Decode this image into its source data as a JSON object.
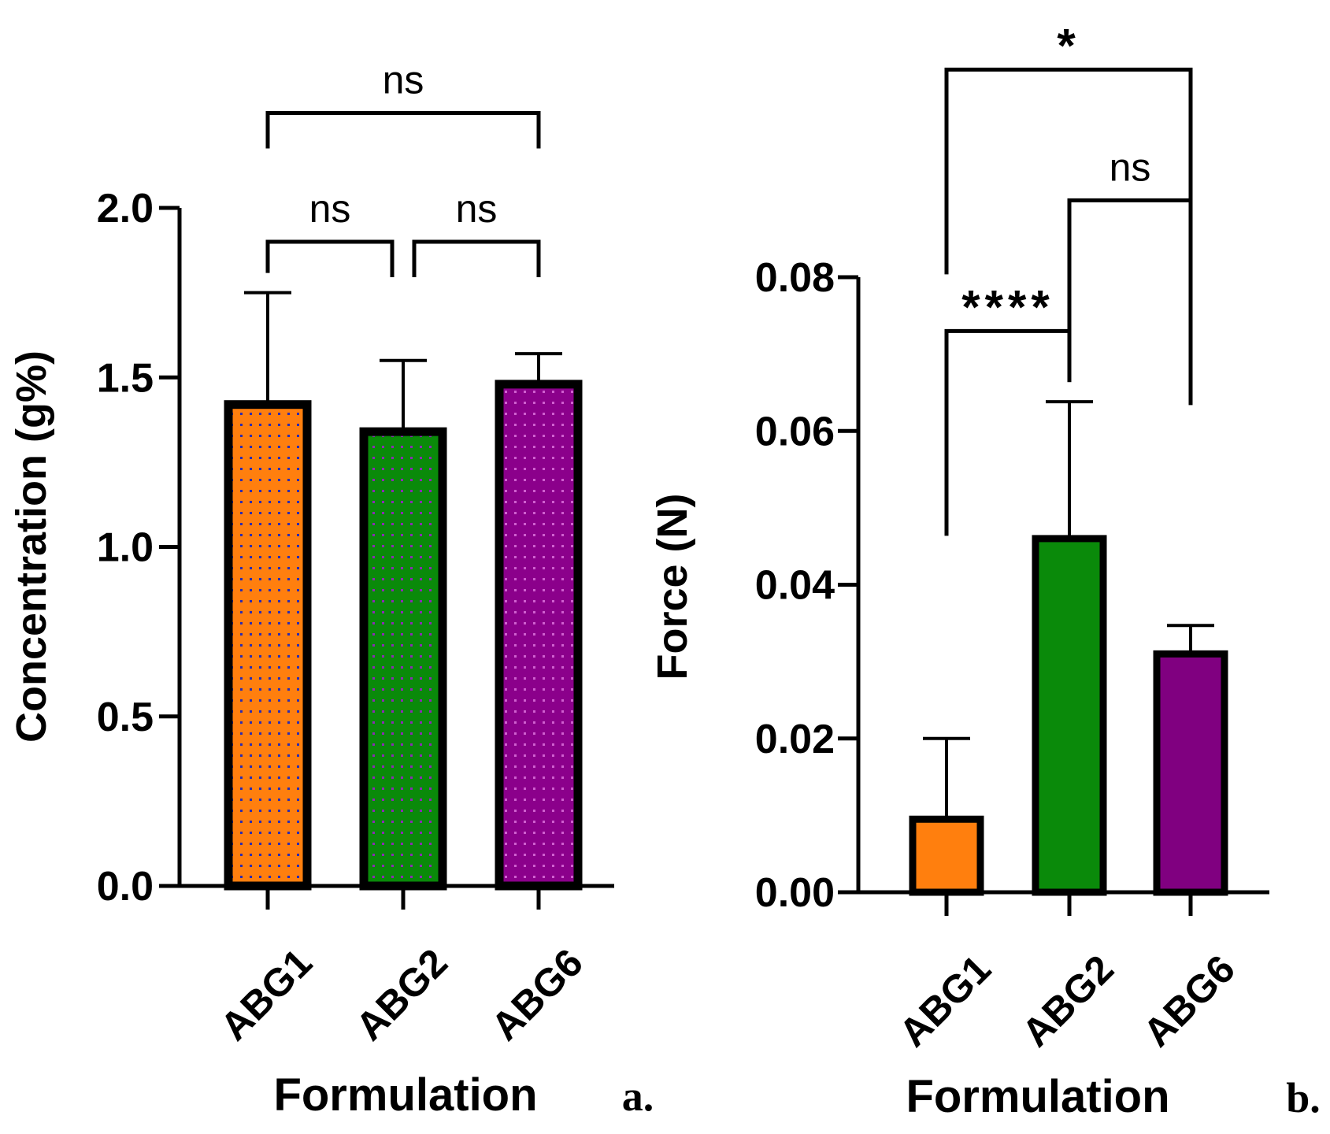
{
  "chart_data": [
    {
      "type": "bar",
      "panel_label": "a.",
      "categories": [
        "ABG1",
        "ABG2",
        "ABG6"
      ],
      "values": [
        1.42,
        1.34,
        1.48
      ],
      "errors": [
        0.33,
        0.21,
        0.09
      ],
      "colors": [
        "#ff7f0e",
        "#0a8a0a",
        "#8b008b"
      ],
      "dot_colors": [
        "#2b2bb3",
        "#8b2bb3",
        "#d060d0"
      ],
      "xlabel": "Formulation",
      "ylabel": "Concentration (g%)",
      "ylim": [
        0,
        2.0
      ],
      "yticks": [
        0.0,
        0.5,
        1.0,
        1.5,
        2.0
      ],
      "ytick_labels": [
        "0.0",
        "0.5",
        "1.0",
        "1.5",
        "2.0"
      ],
      "significance": [
        {
          "pair": [
            0,
            1
          ],
          "label": "ns",
          "level": 1.9
        },
        {
          "pair": [
            1,
            2
          ],
          "label": "ns",
          "level": 1.9
        },
        {
          "pair": [
            0,
            2
          ],
          "label": "ns",
          "level": 2.28
        }
      ]
    },
    {
      "type": "bar",
      "panel_label": "b.",
      "categories": [
        "ABG1",
        "ABG2",
        "ABG6"
      ],
      "values": [
        0.0095,
        0.046,
        0.031
      ],
      "errors": [
        0.0105,
        0.0178,
        0.0037
      ],
      "colors": [
        "#ff7f0e",
        "#0a8a0a",
        "#800080"
      ],
      "xlabel": "Formulation",
      "ylabel": "Force (N)",
      "ylim": [
        0,
        0.08
      ],
      "yticks": [
        0.0,
        0.02,
        0.04,
        0.06,
        0.08
      ],
      "ytick_labels": [
        "0.00",
        "0.02",
        "0.04",
        "0.06",
        "0.08"
      ],
      "significance": [
        {
          "pair": [
            0,
            1
          ],
          "label": "****",
          "level": 0.073
        },
        {
          "pair": [
            1,
            2
          ],
          "label": "ns",
          "level": 0.09
        },
        {
          "pair": [
            0,
            2
          ],
          "label": "*",
          "level": 0.107
        }
      ]
    }
  ]
}
